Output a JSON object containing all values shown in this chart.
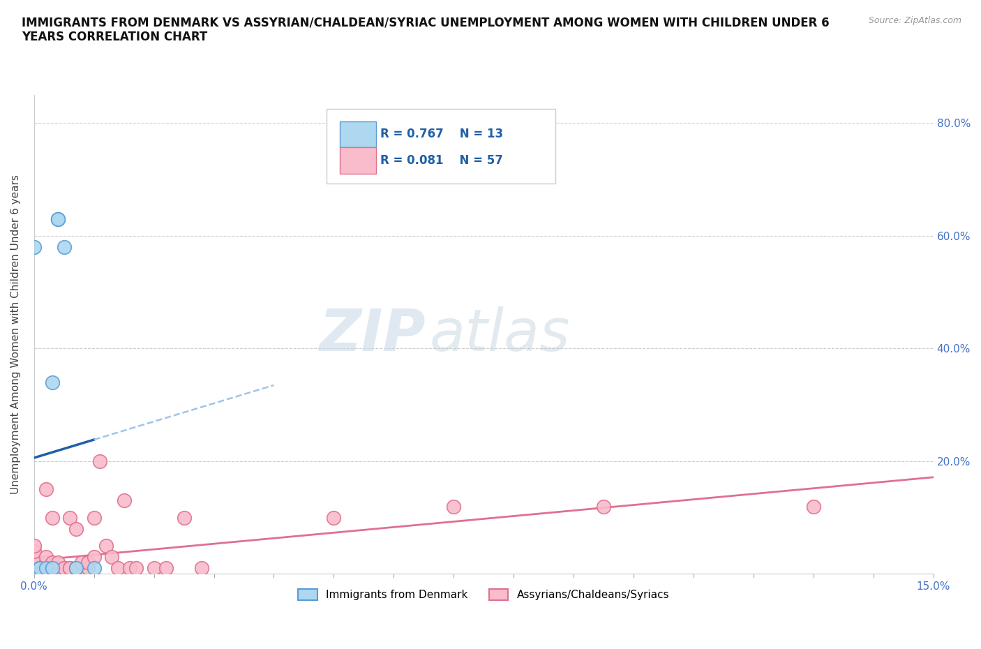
{
  "title": "IMMIGRANTS FROM DENMARK VS ASSYRIAN/CHALDEAN/SYRIAC UNEMPLOYMENT AMONG WOMEN WITH CHILDREN UNDER 6\nYEARS CORRELATION CHART",
  "source": "Source: ZipAtlas.com",
  "ylabel": "Unemployment Among Women with Children Under 6 years",
  "xlim": [
    0,
    0.15
  ],
  "ylim": [
    0,
    0.85
  ],
  "yticks": [
    0.0,
    0.2,
    0.4,
    0.6,
    0.8
  ],
  "ytick_labels_right": [
    "",
    "20.0%",
    "40.0%",
    "60.0%",
    "80.0%"
  ],
  "denmark_color": "#add8f0",
  "denmark_edge": "#5b9bd5",
  "assyrian_color": "#f9bccb",
  "assyrian_edge": "#e07090",
  "trendline_denmark_color": "#1f5fa6",
  "trendline_assyrian_color": "#e07090",
  "trendline_dk_dashed_color": "#a0c4e8",
  "R_denmark": 0.767,
  "N_denmark": 13,
  "R_assyrian": 0.081,
  "N_assyrian": 57,
  "denmark_x": [
    0.0,
    0.0,
    0.001,
    0.001,
    0.001,
    0.002,
    0.003,
    0.003,
    0.004,
    0.004,
    0.005,
    0.007,
    0.01
  ],
  "denmark_y": [
    0.0,
    0.58,
    0.0,
    0.0,
    0.01,
    0.01,
    0.34,
    0.01,
    0.63,
    0.63,
    0.58,
    0.01,
    0.01
  ],
  "assyrian_x": [
    0.0,
    0.0,
    0.0,
    0.0,
    0.0,
    0.0,
    0.0,
    0.0,
    0.0,
    0.0,
    0.001,
    0.001,
    0.001,
    0.001,
    0.002,
    0.002,
    0.002,
    0.002,
    0.002,
    0.002,
    0.002,
    0.003,
    0.003,
    0.003,
    0.003,
    0.003,
    0.003,
    0.004,
    0.004,
    0.004,
    0.005,
    0.005,
    0.006,
    0.006,
    0.006,
    0.007,
    0.007,
    0.008,
    0.009,
    0.009,
    0.01,
    0.01,
    0.011,
    0.012,
    0.013,
    0.014,
    0.015,
    0.016,
    0.017,
    0.02,
    0.022,
    0.025,
    0.028,
    0.05,
    0.07,
    0.095,
    0.13
  ],
  "assyrian_y": [
    0.0,
    0.0,
    0.0,
    0.01,
    0.01,
    0.02,
    0.02,
    0.03,
    0.04,
    0.05,
    0.0,
    0.0,
    0.01,
    0.01,
    0.0,
    0.0,
    0.01,
    0.01,
    0.02,
    0.03,
    0.15,
    0.0,
    0.0,
    0.01,
    0.01,
    0.02,
    0.1,
    0.0,
    0.01,
    0.02,
    0.01,
    0.01,
    0.01,
    0.01,
    0.1,
    0.01,
    0.08,
    0.02,
    0.01,
    0.02,
    0.03,
    0.1,
    0.2,
    0.05,
    0.03,
    0.01,
    0.13,
    0.01,
    0.01,
    0.01,
    0.01,
    0.1,
    0.01,
    0.1,
    0.12,
    0.12,
    0.12
  ],
  "watermark_zip": "ZIP",
  "watermark_atlas": "atlas",
  "legend_label_denmark": "Immigrants from Denmark",
  "legend_label_assyrian": "Assyrians/Chaldeans/Syriacs"
}
